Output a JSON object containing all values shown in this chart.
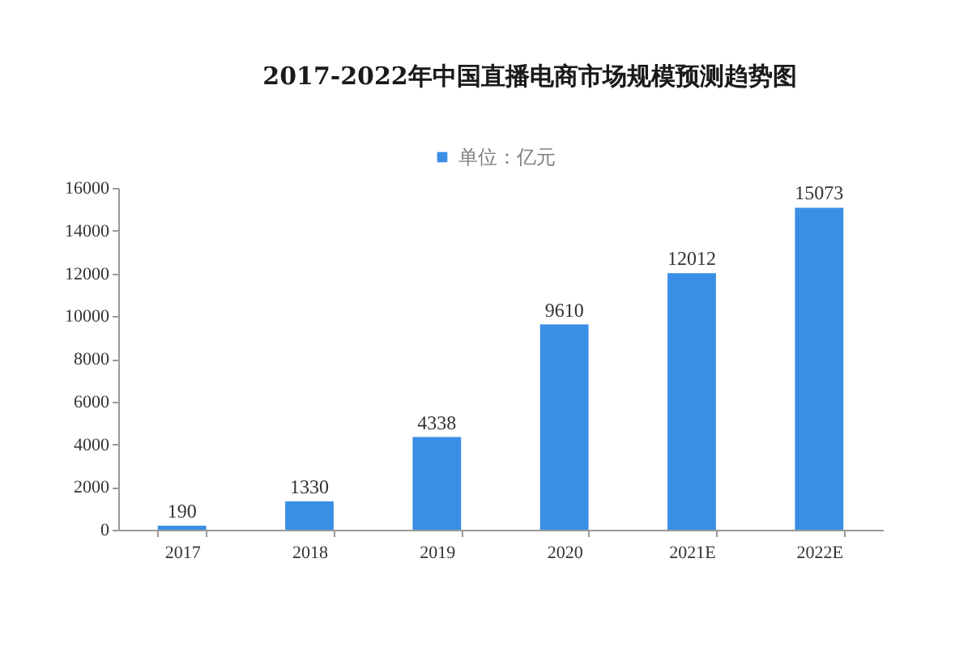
{
  "chart_data": {
    "type": "bar",
    "title": "2017-2022年中国直播电商市场规模预测趋势图",
    "categories": [
      "2017",
      "2018",
      "2019",
      "2020",
      "2021E",
      "2022E"
    ],
    "series": [
      {
        "name": "单位：亿元",
        "color": "#3a8ee6",
        "values": [
          190,
          1330,
          4338,
          9610,
          12012,
          15073
        ]
      }
    ],
    "ylim": [
      0,
      16000
    ],
    "yticks": [
      0,
      2000,
      4000,
      6000,
      8000,
      10000,
      12000,
      14000,
      16000
    ],
    "data_labels": true,
    "legend": "top",
    "grid": false
  }
}
